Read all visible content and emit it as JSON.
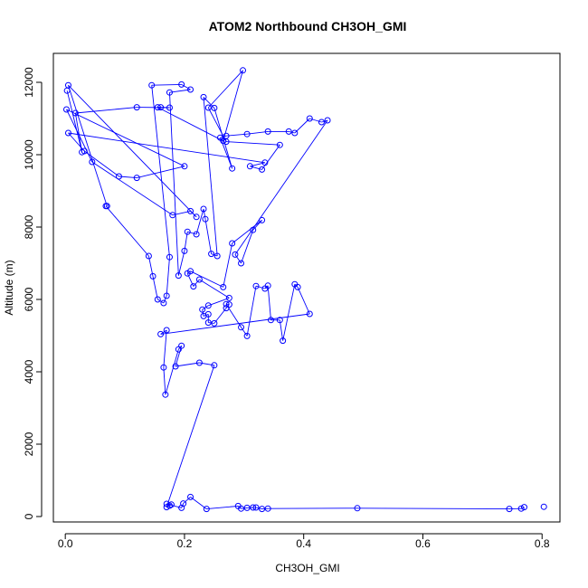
{
  "chart_data": {
    "type": "scatter",
    "title": "ATOM2 Northbound CH3OH_GMI",
    "xlabel": "CH3OH_GMI",
    "ylabel": "Altitude (m)",
    "xlim": [
      -0.02,
      0.83
    ],
    "ylim": [
      -150,
      12800
    ],
    "xticks": [
      0.0,
      0.2,
      0.4,
      0.6,
      0.8
    ],
    "xtick_labels": [
      "0.0",
      "0.2",
      "0.4",
      "0.6",
      "0.8"
    ],
    "yticks": [
      0,
      2000,
      4000,
      6000,
      8000,
      10000,
      12000
    ],
    "ytick_labels": [
      "0",
      "2000",
      "4000",
      "6000",
      "8000",
      "10000",
      "12000"
    ],
    "grid": false,
    "color": "#0000ff",
    "series": [
      {
        "points": [
          [
            0.003,
            11770
          ],
          [
            0.028,
            10070
          ],
          [
            0.017,
            11150
          ],
          [
            0.12,
            11310
          ],
          [
            0.175,
            11300
          ],
          [
            0.16,
            11310
          ],
          [
            0.155,
            11310
          ],
          [
            0.265,
            10380
          ],
          [
            0.298,
            12330
          ],
          [
            0.24,
            11300
          ],
          [
            0.27,
            10360
          ],
          [
            0.36,
            10270
          ],
          [
            0.33,
            9590
          ],
          [
            0.31,
            9680
          ],
          [
            0.335,
            9780
          ],
          [
            0.005,
            10600
          ],
          [
            0.032,
            10100
          ],
          [
            0.09,
            9400
          ],
          [
            0.12,
            9360
          ],
          [
            0.2,
            9680
          ],
          [
            0.002,
            11250
          ],
          [
            0.045,
            9800
          ],
          [
            0.18,
            8330
          ],
          [
            0.21,
            8440
          ],
          [
            0.22,
            8280
          ],
          [
            0.005,
            11920
          ],
          [
            0.07,
            8580
          ],
          [
            0.068,
            8580
          ],
          [
            0.14,
            7200
          ],
          [
            0.147,
            6640
          ],
          [
            0.155,
            6000
          ],
          [
            0.165,
            5900
          ],
          [
            0.17,
            6100
          ],
          [
            0.175,
            7170
          ],
          [
            0.145,
            11920
          ],
          [
            0.195,
            11940
          ],
          [
            0.21,
            11800
          ],
          [
            0.175,
            11720
          ],
          [
            0.19,
            6660
          ],
          [
            0.2,
            7340
          ],
          [
            0.205,
            7870
          ],
          [
            0.22,
            7800
          ],
          [
            0.232,
            8500
          ],
          [
            0.235,
            8220
          ],
          [
            0.245,
            7260
          ],
          [
            0.255,
            7200
          ],
          [
            0.232,
            11590
          ],
          [
            0.25,
            11290
          ],
          [
            0.28,
            9620
          ],
          [
            0.26,
            10470
          ],
          [
            0.27,
            10520
          ],
          [
            0.305,
            10570
          ],
          [
            0.34,
            10640
          ],
          [
            0.375,
            10640
          ],
          [
            0.385,
            10600
          ],
          [
            0.41,
            11000
          ],
          [
            0.43,
            10900
          ],
          [
            0.44,
            10950
          ],
          [
            0.285,
            7240
          ],
          [
            0.295,
            7000
          ],
          [
            0.315,
            7920
          ],
          [
            0.33,
            8190
          ],
          [
            0.28,
            7550
          ],
          [
            0.265,
            6340
          ],
          [
            0.21,
            6780
          ],
          [
            0.205,
            6720
          ],
          [
            0.215,
            6360
          ],
          [
            0.225,
            6550
          ],
          [
            0.275,
            6040
          ],
          [
            0.24,
            5830
          ],
          [
            0.23,
            5720
          ],
          [
            0.232,
            5540
          ],
          [
            0.24,
            5590
          ],
          [
            0.24,
            5360
          ],
          [
            0.25,
            5340
          ],
          [
            0.27,
            5760
          ],
          [
            0.275,
            5860
          ],
          [
            0.27,
            5870
          ],
          [
            0.295,
            5230
          ],
          [
            0.305,
            4990
          ],
          [
            0.32,
            6370
          ],
          [
            0.335,
            6300
          ],
          [
            0.34,
            6380
          ],
          [
            0.345,
            5430
          ],
          [
            0.36,
            5430
          ],
          [
            0.365,
            4860
          ],
          [
            0.385,
            6420
          ],
          [
            0.39,
            6340
          ],
          [
            0.41,
            5600
          ],
          [
            0.16,
            5040
          ],
          [
            0.17,
            5150
          ],
          [
            0.165,
            4120
          ],
          [
            0.168,
            3370
          ],
          [
            0.19,
            4620
          ],
          [
            0.195,
            4720
          ],
          [
            0.185,
            4150
          ],
          [
            0.225,
            4250
          ],
          [
            0.25,
            4180
          ],
          [
            0.17,
            260
          ],
          [
            0.175,
            300
          ],
          [
            0.178,
            330
          ],
          [
            0.17,
            350
          ],
          [
            0.195,
            240
          ],
          [
            0.198,
            360
          ],
          [
            0.21,
            540
          ],
          [
            0.237,
            210
          ],
          [
            0.29,
            290
          ],
          [
            0.295,
            220
          ],
          [
            0.305,
            240
          ],
          [
            0.315,
            250
          ],
          [
            0.32,
            250
          ],
          [
            0.33,
            210
          ],
          [
            0.34,
            220
          ],
          [
            0.49,
            230
          ],
          [
            0.745,
            210
          ],
          [
            0.765,
            220
          ],
          [
            0.77,
            260
          ],
          [
            0.803,
            270
          ]
        ],
        "path_order": [
          0,
          1,
          2,
          3,
          4,
          5,
          6,
          7,
          8,
          9,
          10,
          11,
          12,
          13,
          14,
          15,
          16,
          17,
          18,
          19,
          20,
          21,
          22,
          23,
          24,
          25,
          26,
          27,
          28,
          29,
          30,
          31,
          32,
          33,
          34,
          35,
          36,
          37,
          38,
          39,
          40,
          41,
          42,
          43,
          44,
          45,
          46,
          47,
          48,
          49,
          50,
          51,
          52,
          53,
          54,
          55,
          56,
          57,
          58,
          59,
          60,
          61,
          62,
          63,
          64,
          65,
          66,
          67,
          68,
          69,
          70,
          71,
          72,
          73,
          74,
          75,
          76,
          77,
          78,
          79,
          80,
          81,
          82,
          83,
          84,
          85,
          86,
          87,
          88,
          89,
          90,
          91,
          92,
          93,
          94,
          95,
          96,
          97,
          98,
          99,
          100,
          101,
          102,
          103,
          104,
          105,
          106,
          107,
          108,
          109,
          110,
          111,
          112,
          113,
          114,
          115,
          116
        ]
      }
    ]
  }
}
